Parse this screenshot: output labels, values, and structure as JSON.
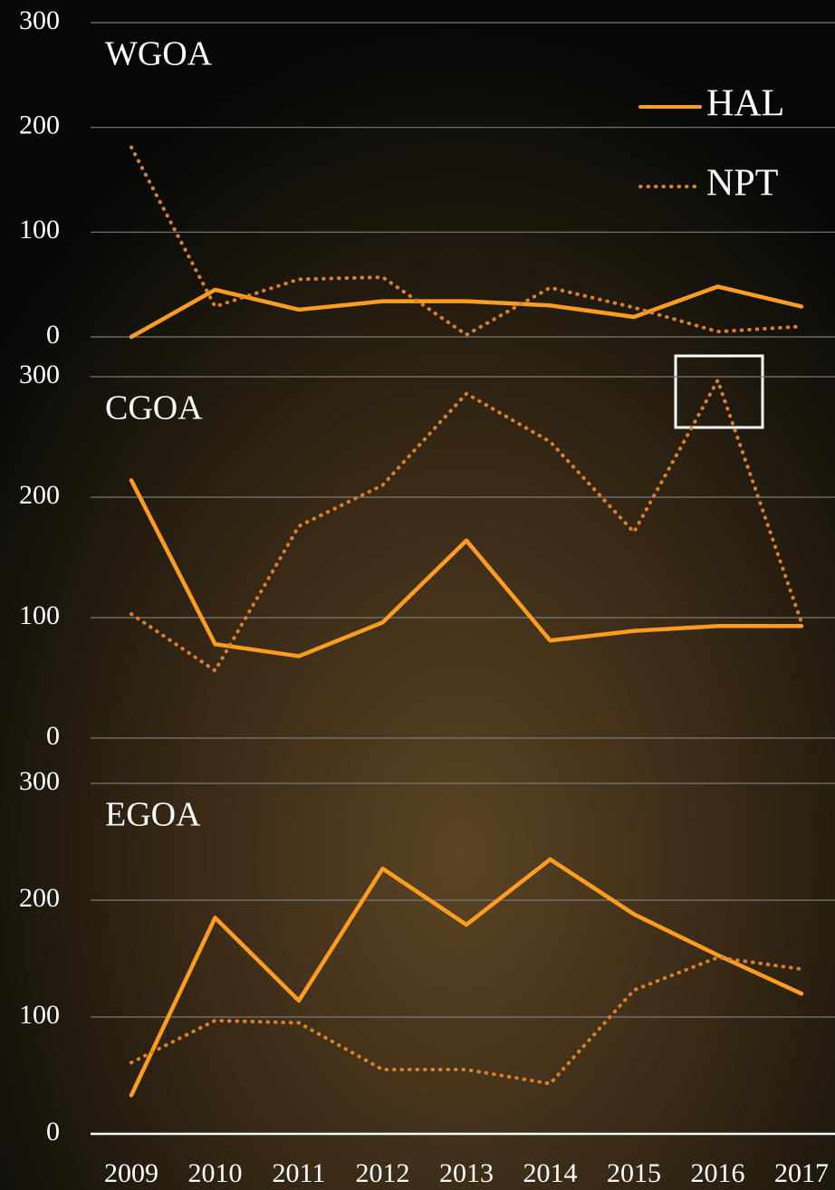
{
  "chart_data": [
    {
      "type": "line",
      "title": "WGOA",
      "ylim": [
        0,
        300
      ],
      "yticks": [
        0,
        100,
        200,
        300
      ],
      "grid": true,
      "legend": "upper right",
      "series": [
        {
          "name": "HAL",
          "color": "#ff9d1f",
          "linestyle": "solid",
          "values": [
            0,
            45,
            26,
            34,
            34,
            30,
            19,
            48,
            29
          ]
        },
        {
          "name": "NPT",
          "color": "#d9822b",
          "linestyle": "dotted",
          "values": [
            181,
            29,
            55,
            57,
            2,
            47,
            28,
            5,
            10
          ]
        }
      ]
    },
    {
      "type": "line",
      "title": "CGOA",
      "ylim": [
        0,
        300
      ],
      "yticks": [
        0,
        100,
        200,
        300
      ],
      "grid": true,
      "series": [
        {
          "color": "#ff9d1f",
          "linestyle": "solid",
          "values": [
            214,
            78,
            68,
            96,
            164,
            81,
            89,
            93,
            93
          ]
        },
        {
          "color": "#d9822b",
          "linestyle": "dotted",
          "values": [
            103,
            56,
            176,
            210,
            286,
            246,
            171,
            297,
            96
          ]
        }
      ]
    },
    {
      "type": "line",
      "title": "EGOA",
      "ylim": [
        0,
        300
      ],
      "yticks": [
        0,
        100,
        200,
        300
      ],
      "grid": true,
      "categories": [
        "2009",
        "2010",
        "2011",
        "2012",
        "2013",
        "2014",
        "2015",
        "2016",
        "2017"
      ],
      "series": [
        {
          "color": "#ff9d1f",
          "linestyle": "solid",
          "values": [
            33,
            185,
            114,
            227,
            179,
            235,
            188,
            153,
            120
          ]
        },
        {
          "color": "#d9822b",
          "linestyle": "dotted",
          "values": [
            61,
            97,
            95,
            55,
            55,
            43,
            123,
            151,
            141
          ]
        }
      ]
    }
  ]
}
